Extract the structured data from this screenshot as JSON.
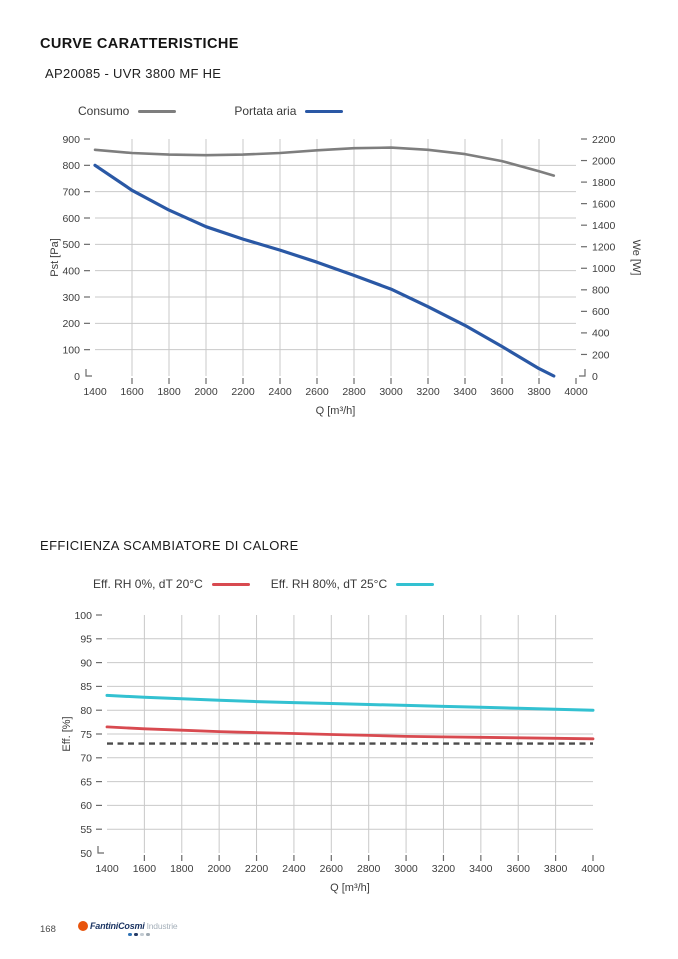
{
  "header": {
    "title": "CURVE CARATTERISTICHE",
    "subtitle": "AP20085 - UVR 3800 MF HE"
  },
  "section2": {
    "title": "EFFICIENZA SCAMBIATORE DI CALORE"
  },
  "footer": {
    "page_number": "168",
    "logo": {
      "brand": "FantiniCosmi",
      "suffix": "Industrie",
      "mark_color": "#e8540c",
      "brand_color": "#1c3563",
      "suffix_color": "#a6b1bb",
      "dot_colors": [
        "#2f72b5",
        "#243a66",
        "#c3cbd2",
        "#9fa9b2"
      ]
    }
  },
  "colors": {
    "grid": "#c9c9c9",
    "tick": "#6b6b6b",
    "label": "#3d3d3d",
    "consumo": "#7e7e7e",
    "portata_aria": "#2a58a5",
    "rh0": "#d84a50",
    "rh80": "#33c1d1",
    "reference": "#4b4b4b"
  },
  "chart_data": [
    {
      "type": "line",
      "title": "CURVE CARATTERISTICHE",
      "subtitle": "AP20085 - UVR 3800 MF HE",
      "xlabel": "Q [m³/h]",
      "ylabel_left": "Pst [Pa]",
      "ylabel_right": "We [W]",
      "xlim": [
        1400,
        4000
      ],
      "xticks": [
        1400,
        1600,
        1800,
        2000,
        2200,
        2400,
        2600,
        2800,
        3000,
        3200,
        3400,
        3600,
        3800,
        4000
      ],
      "ylim_left": [
        0,
        900
      ],
      "yticks_left": [
        0,
        100,
        200,
        300,
        400,
        500,
        600,
        700,
        800,
        900
      ],
      "ylim_right": [
        0,
        2200
      ],
      "yticks_right": [
        0,
        200,
        400,
        600,
        800,
        1000,
        1200,
        1400,
        1600,
        1800,
        2000,
        2200
      ],
      "grid": true,
      "legend_position": "top",
      "series": [
        {
          "name": "Consumo",
          "axis": "right",
          "color": "#7e7e7e",
          "x": [
            1400,
            1600,
            1800,
            2000,
            2200,
            2400,
            2600,
            2800,
            3000,
            3200,
            3400,
            3600,
            3800,
            3880
          ],
          "y": [
            2100,
            2070,
            2055,
            2050,
            2055,
            2070,
            2095,
            2115,
            2120,
            2100,
            2060,
            1995,
            1900,
            1860
          ]
        },
        {
          "name": "Portata aria",
          "axis": "left",
          "color": "#2a58a5",
          "x": [
            1400,
            1600,
            1800,
            2000,
            2200,
            2400,
            2600,
            2800,
            3000,
            3200,
            3400,
            3600,
            3800,
            3880
          ],
          "y": [
            800,
            705,
            630,
            567,
            520,
            478,
            432,
            382,
            330,
            263,
            192,
            112,
            28,
            0
          ]
        }
      ]
    },
    {
      "type": "line",
      "title": "EFFICIENZA SCAMBIATORE DI CALORE",
      "xlabel": "Q [m³/h]",
      "ylabel": "Eff. [%]",
      "xlim": [
        1400,
        4000
      ],
      "xticks": [
        1400,
        1600,
        1800,
        2000,
        2200,
        2400,
        2600,
        2800,
        3000,
        3200,
        3400,
        3600,
        3800,
        4000
      ],
      "ylim": [
        50,
        100
      ],
      "yticks": [
        50,
        55,
        60,
        65,
        70,
        75,
        80,
        85,
        90,
        95,
        100
      ],
      "grid": true,
      "legend_position": "top",
      "series": [
        {
          "name": "Eff. RH 0%, dT 20°C",
          "color": "#d84a50",
          "x": [
            1400,
            1600,
            1800,
            2000,
            2200,
            2400,
            2600,
            2800,
            3000,
            3200,
            3400,
            3600,
            3800,
            4000
          ],
          "y": [
            76.5,
            76.1,
            75.8,
            75.5,
            75.3,
            75.1,
            74.9,
            74.7,
            74.5,
            74.4,
            74.3,
            74.2,
            74.1,
            74.0
          ]
        },
        {
          "name": "Eff. RH 80%, dT 25°C",
          "color": "#33c1d1",
          "x": [
            1400,
            1600,
            1800,
            2000,
            2200,
            2400,
            2600,
            2800,
            3000,
            3200,
            3400,
            3600,
            3800,
            4000
          ],
          "y": [
            83.1,
            82.7,
            82.4,
            82.1,
            81.8,
            81.6,
            81.4,
            81.2,
            81.0,
            80.8,
            80.6,
            80.4,
            80.2,
            80.0
          ]
        }
      ],
      "reference_line": {
        "value": 73,
        "color": "#4b4b4b",
        "style": "dashed"
      }
    }
  ]
}
